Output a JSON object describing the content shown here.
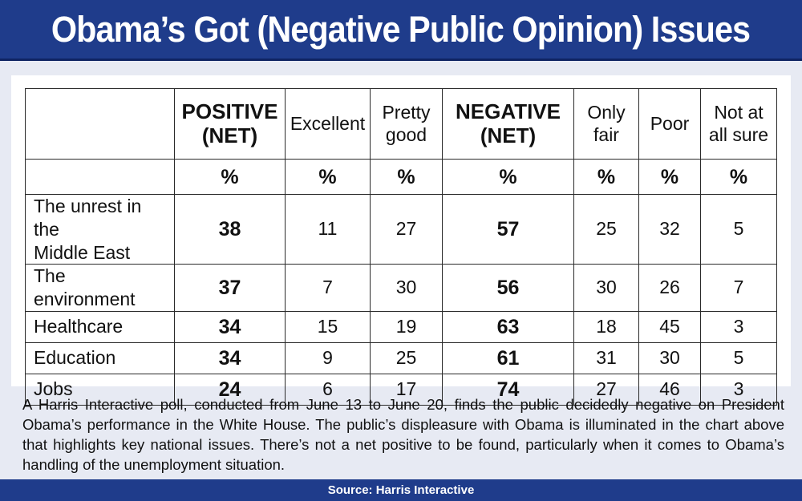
{
  "title": "Obama’s Got (Negative Public Opinion) Issues",
  "colors": {
    "header_bar": "#1f3c8b",
    "background": "#e7eaf3",
    "panel": "#ffffff"
  },
  "chart_data": {
    "type": "table",
    "columns": [
      {
        "line1": "POSITIVE",
        "line2": "(NET)",
        "bold": true
      },
      {
        "line1": "Excellent",
        "line2": "",
        "bold": false
      },
      {
        "line1": "Pretty",
        "line2": "good",
        "bold": false
      },
      {
        "line1": "NEGATIVE",
        "line2": "(NET)",
        "bold": true
      },
      {
        "line1": "Only",
        "line2": "fair",
        "bold": false
      },
      {
        "line1": "Poor",
        "line2": "",
        "bold": false
      },
      {
        "line1": "Not at",
        "line2": "all sure",
        "bold": false
      }
    ],
    "unit_row": [
      "%",
      "%",
      "%",
      "%",
      "%",
      "%",
      "%"
    ],
    "rows": [
      {
        "label_line1": "The unrest in the",
        "label_line2": "Middle East",
        "values": [
          "38",
          "11",
          "27",
          "57",
          "25",
          "32",
          "5"
        ]
      },
      {
        "label_line1": "The environment",
        "label_line2": "",
        "values": [
          "37",
          "7",
          "30",
          "56",
          "30",
          "26",
          "7"
        ]
      },
      {
        "label_line1": "Healthcare",
        "label_line2": "",
        "values": [
          "34",
          "15",
          "19",
          "63",
          "18",
          "45",
          "3"
        ]
      },
      {
        "label_line1": "Education",
        "label_line2": "",
        "values": [
          "34",
          "9",
          "25",
          "61",
          "31",
          "30",
          "5"
        ]
      },
      {
        "label_line1": "Jobs",
        "label_line2": "",
        "values": [
          "24",
          "6",
          "17",
          "74",
          "27",
          "46",
          "3"
        ]
      }
    ]
  },
  "caption": "A Harris Interactive poll, conducted from June 13 to June 20, finds the public decidedly negative on President Obama’s performance in the White House. The public’s displeasure with Obama is illuminated in the chart above that highlights key national issues. There’s not a net positive to be found, particularly when it comes to Obama’s handling of the unemployment situation.",
  "source": "Source: Harris Interactive"
}
